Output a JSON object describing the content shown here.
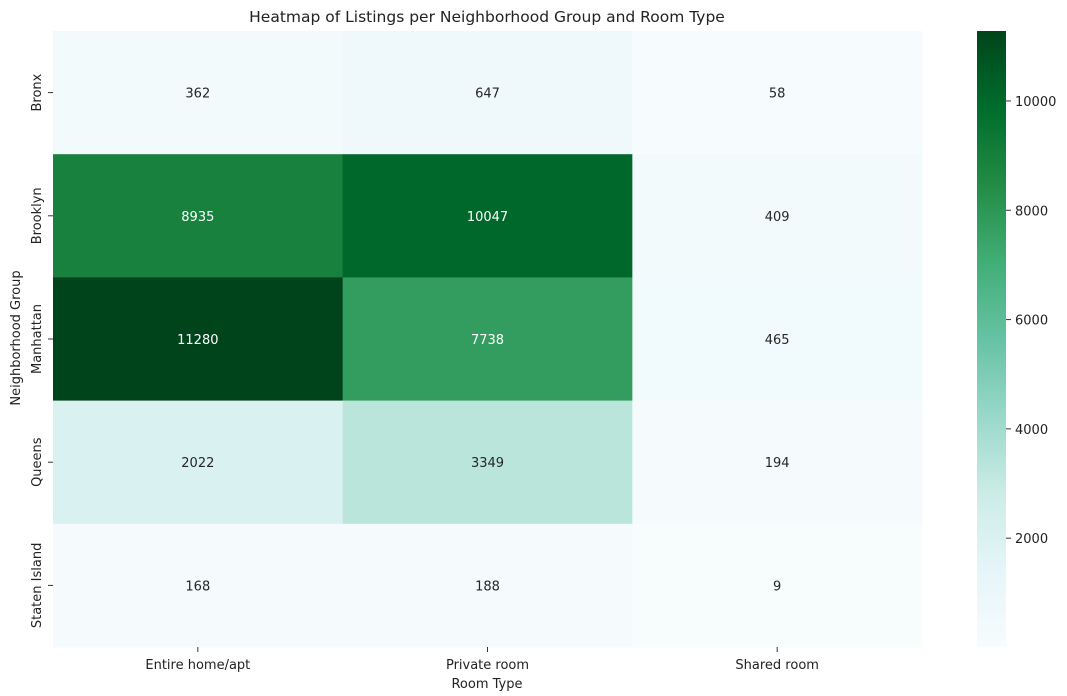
{
  "chart_data": {
    "type": "heatmap",
    "title": "Heatmap of Listings per Neighborhood Group and Room Type",
    "xlabel": "Room Type",
    "ylabel": "Neighborhood Group",
    "x_categories": [
      "Entire home/apt",
      "Private room",
      "Shared room"
    ],
    "y_categories": [
      "Bronx",
      "Brooklyn",
      "Manhattan",
      "Queens",
      "Staten Island"
    ],
    "values": [
      [
        362,
        647,
        58
      ],
      [
        8935,
        10047,
        409
      ],
      [
        11280,
        7738,
        465
      ],
      [
        2022,
        3349,
        194
      ],
      [
        168,
        188,
        9
      ]
    ],
    "colormap": "BuGn",
    "vmin": 9,
    "vmax": 11280,
    "colorbar": {
      "ticks": [
        2000,
        4000,
        6000,
        8000,
        10000
      ]
    },
    "annotate": true,
    "grid": false
  }
}
